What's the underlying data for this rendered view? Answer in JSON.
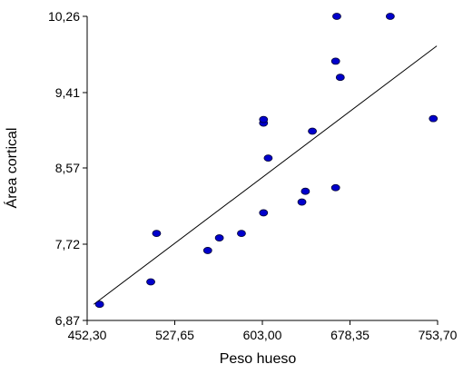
{
  "chart_data": {
    "type": "scatter",
    "title": "",
    "xlabel": "Peso hueso",
    "ylabel": "Área cortical",
    "xlim": [
      452.3,
      753.7
    ],
    "ylim": [
      6.87,
      10.26
    ],
    "x_ticks": [
      "452,30",
      "527,65",
      "603,00",
      "678,35",
      "753,70"
    ],
    "y_ticks": [
      "6,87",
      "7,72",
      "8,57",
      "9,41",
      "10,26"
    ],
    "x_tick_values": [
      452.3,
      527.65,
      603.0,
      678.35,
      753.7
    ],
    "y_tick_values": [
      6.87,
      7.72,
      8.57,
      9.41,
      10.26
    ],
    "grid": false,
    "point_color": "#0000cc",
    "series": [
      {
        "points": [
          {
            "x": 463.0,
            "y": 7.05
          },
          {
            "x": 507.0,
            "y": 7.3
          },
          {
            "x": 512.0,
            "y": 7.84
          },
          {
            "x": 556.0,
            "y": 7.65
          },
          {
            "x": 566.0,
            "y": 7.79
          },
          {
            "x": 585.0,
            "y": 7.84
          },
          {
            "x": 604.0,
            "y": 8.07
          },
          {
            "x": 604.0,
            "y": 9.07
          },
          {
            "x": 604.0,
            "y": 9.11
          },
          {
            "x": 608.0,
            "y": 8.68
          },
          {
            "x": 637.0,
            "y": 8.19
          },
          {
            "x": 640.0,
            "y": 8.31
          },
          {
            "x": 646.0,
            "y": 8.98
          },
          {
            "x": 666.0,
            "y": 8.35
          },
          {
            "x": 666.0,
            "y": 9.76
          },
          {
            "x": 667.0,
            "y": 10.26
          },
          {
            "x": 670.0,
            "y": 9.58
          },
          {
            "x": 713.0,
            "y": 10.26
          },
          {
            "x": 750.0,
            "y": 9.12
          }
        ]
      }
    ],
    "trendline": {
      "x": [
        458.0,
        753.0
      ],
      "y": [
        7.05,
        9.93
      ]
    }
  }
}
